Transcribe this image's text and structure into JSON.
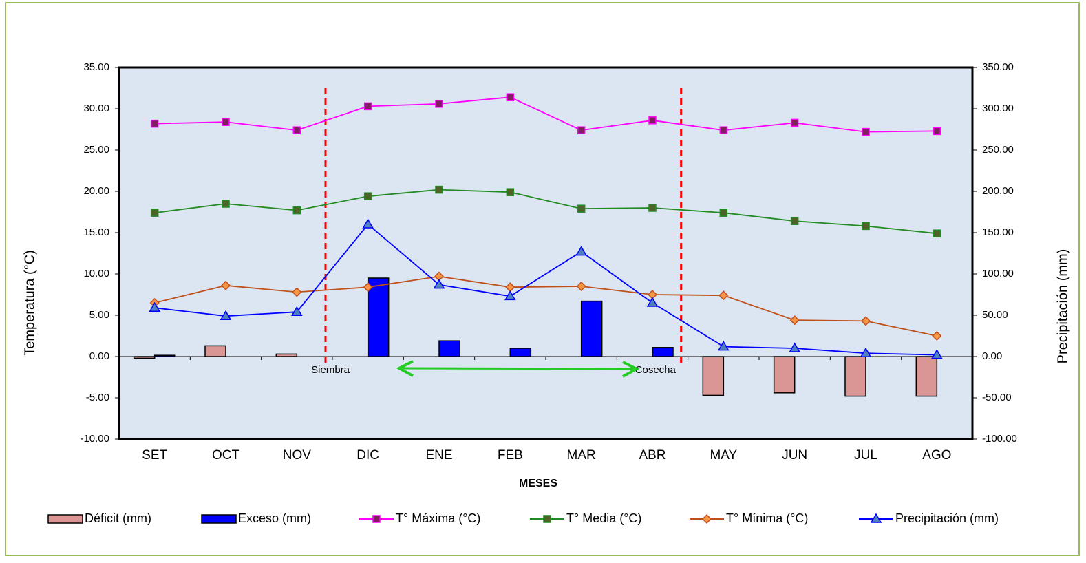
{
  "chart_data": {
    "type": "combo",
    "x_label": "MESES",
    "y_label": "Temperatura (°C)",
    "y2_label": "Precipitación (mm)",
    "categories": [
      "SET",
      "OCT",
      "NOV",
      "DIC",
      "ENE",
      "FEB",
      "MAR",
      "ABR",
      "MAY",
      "JUN",
      "JUL",
      "AGO"
    ],
    "ylim": [
      -10,
      35
    ],
    "yticks": [
      {
        "value": -10,
        "label": "-10.00"
      },
      {
        "value": -5,
        "label": "-5.00"
      },
      {
        "value": 0,
        "label": "0.00"
      },
      {
        "value": 5,
        "label": "5.00"
      },
      {
        "value": 10,
        "label": "10.00"
      },
      {
        "value": 15,
        "label": "15.00"
      },
      {
        "value": 20,
        "label": "20.00"
      },
      {
        "value": 25,
        "label": "25.00"
      },
      {
        "value": 30,
        "label": "30.00"
      },
      {
        "value": 35,
        "label": "35.00"
      }
    ],
    "y2lim": [
      -100,
      350
    ],
    "y2ticks": [
      {
        "value": -100,
        "label": "-100.00"
      },
      {
        "value": -50,
        "label": "-50.00"
      },
      {
        "value": 0,
        "label": "0.00"
      },
      {
        "value": 50,
        "label": "50.00"
      },
      {
        "value": 100,
        "label": "100.00"
      },
      {
        "value": 150,
        "label": "150.00"
      },
      {
        "value": 200,
        "label": "200.00"
      },
      {
        "value": 250,
        "label": "250.00"
      },
      {
        "value": 300,
        "label": "300.00"
      },
      {
        "value": 350,
        "label": "350.00"
      }
    ],
    "series": [
      {
        "name": "Déficit (mm)",
        "type": "bar",
        "axis": "y2",
        "color": "#d99694",
        "values": [
          -2,
          13,
          3,
          0,
          0,
          0,
          0,
          0,
          -47,
          -44,
          -48,
          -48
        ]
      },
      {
        "name": "Exceso (mm)",
        "type": "bar",
        "axis": "y2",
        "color": "#0000ff",
        "values": [
          1.5,
          0,
          0,
          95,
          19,
          10,
          67,
          11,
          0,
          0,
          0,
          0
        ]
      },
      {
        "name": "T° Máxima (°C)",
        "type": "line",
        "color": "#ff00ff",
        "marker": "square",
        "marker_color": "#7f1f5f",
        "values": [
          28.2,
          28.4,
          27.4,
          30.3,
          30.6,
          31.4,
          27.4,
          28.6,
          27.4,
          28.3,
          27.2,
          27.3
        ]
      },
      {
        "name": "T° Media (°C)",
        "type": "line",
        "color": "#228b22",
        "marker": "square",
        "marker_color": "#4f6228",
        "values": [
          17.4,
          18.5,
          17.7,
          19.4,
          20.2,
          19.9,
          17.9,
          18.0,
          17.4,
          16.4,
          15.8,
          14.9
        ]
      },
      {
        "name": "T° Mínima (°C)",
        "type": "line",
        "color": "#c0501a",
        "marker": "diamond",
        "marker_color": "#f79646",
        "values": [
          6.5,
          8.6,
          7.8,
          8.4,
          9.7,
          8.4,
          8.5,
          7.5,
          7.4,
          4.4,
          4.3,
          2.5
        ]
      },
      {
        "name": "Precipitación (mm)",
        "type": "line",
        "axis": "y2",
        "color": "#0000ff",
        "marker": "triangle",
        "marker_color": "#4f81bd",
        "values": [
          59,
          49,
          54,
          160,
          87,
          73,
          127,
          65,
          12,
          10,
          4,
          2
        ]
      }
    ],
    "annotations": [
      "Siembra",
      "Cosecha"
    ],
    "plot_background": "#dce6f2",
    "legend": "bottom"
  }
}
